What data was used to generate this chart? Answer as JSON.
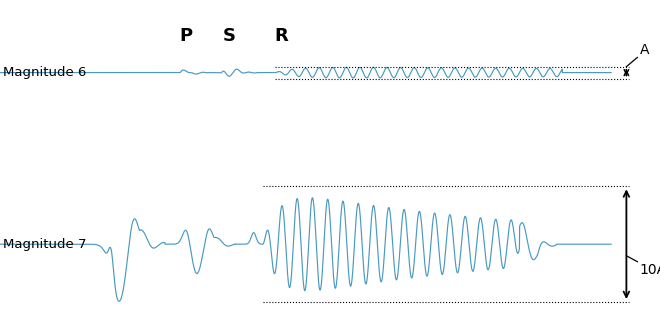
{
  "background_color": "#ffffff",
  "wave_color": "#4a9abf",
  "text_color": "#000000",
  "label_mag6": "Magnitude 6",
  "label_mag7": "Magnitude 7",
  "label_P": "P",
  "label_S": "S",
  "label_R": "R",
  "label_A": "A",
  "label_10A": "10A",
  "figsize": [
    6.6,
    3.3
  ],
  "dpi": 100,
  "xlim": [
    0,
    10.8
  ],
  "ylim": [
    0,
    10.0
  ],
  "mag6_y": 7.8,
  "mag7_y": 2.6,
  "A_amp": 0.18,
  "A10_amp": 1.75
}
